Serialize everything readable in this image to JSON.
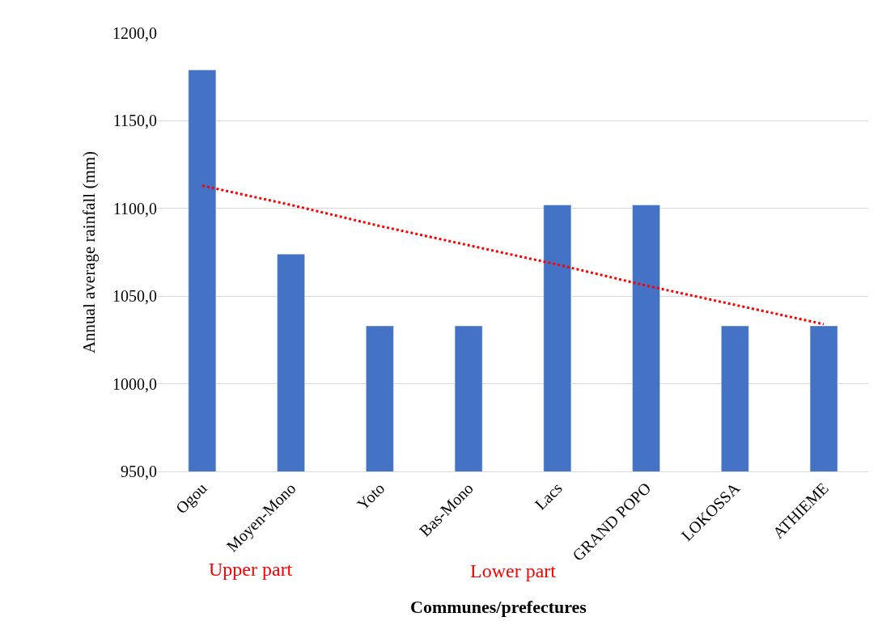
{
  "chart_data": {
    "type": "bar",
    "ylabel": "Annual average rainfall (mm)",
    "xlabel": "Communes/prefectures",
    "categories": [
      "Ogou",
      "Moyen-Mono",
      "Yoto",
      "Bas-Mono",
      "Lacs",
      "GRAND POPO",
      "LOKOSSA",
      "ATHIEME"
    ],
    "series": [
      {
        "color": "#4472c4",
        "values": [
          1179,
          1074,
          1033,
          1033,
          1102,
          1102,
          1033,
          1033
        ]
      },
      {
        "type": "line",
        "color": "#ff0000",
        "line_style": "dotted",
        "values": [
          1113,
          1102,
          1090,
          1079,
          1068,
          1056,
          1045,
          1034
        ]
      }
    ],
    "ylim": [
      950,
      1200
    ],
    "yticks": [
      {
        "value": 950,
        "label": "950,0"
      },
      {
        "value": 1000,
        "label": "1000,0"
      },
      {
        "value": 1050,
        "label": "1050,0"
      },
      {
        "value": 1100,
        "label": "1100,0"
      },
      {
        "value": 1150,
        "label": "1150,0"
      },
      {
        "value": 1200,
        "label": "1200,0"
      }
    ],
    "grid": "y",
    "annotations": [
      "Upper part",
      "Lower part"
    ]
  }
}
